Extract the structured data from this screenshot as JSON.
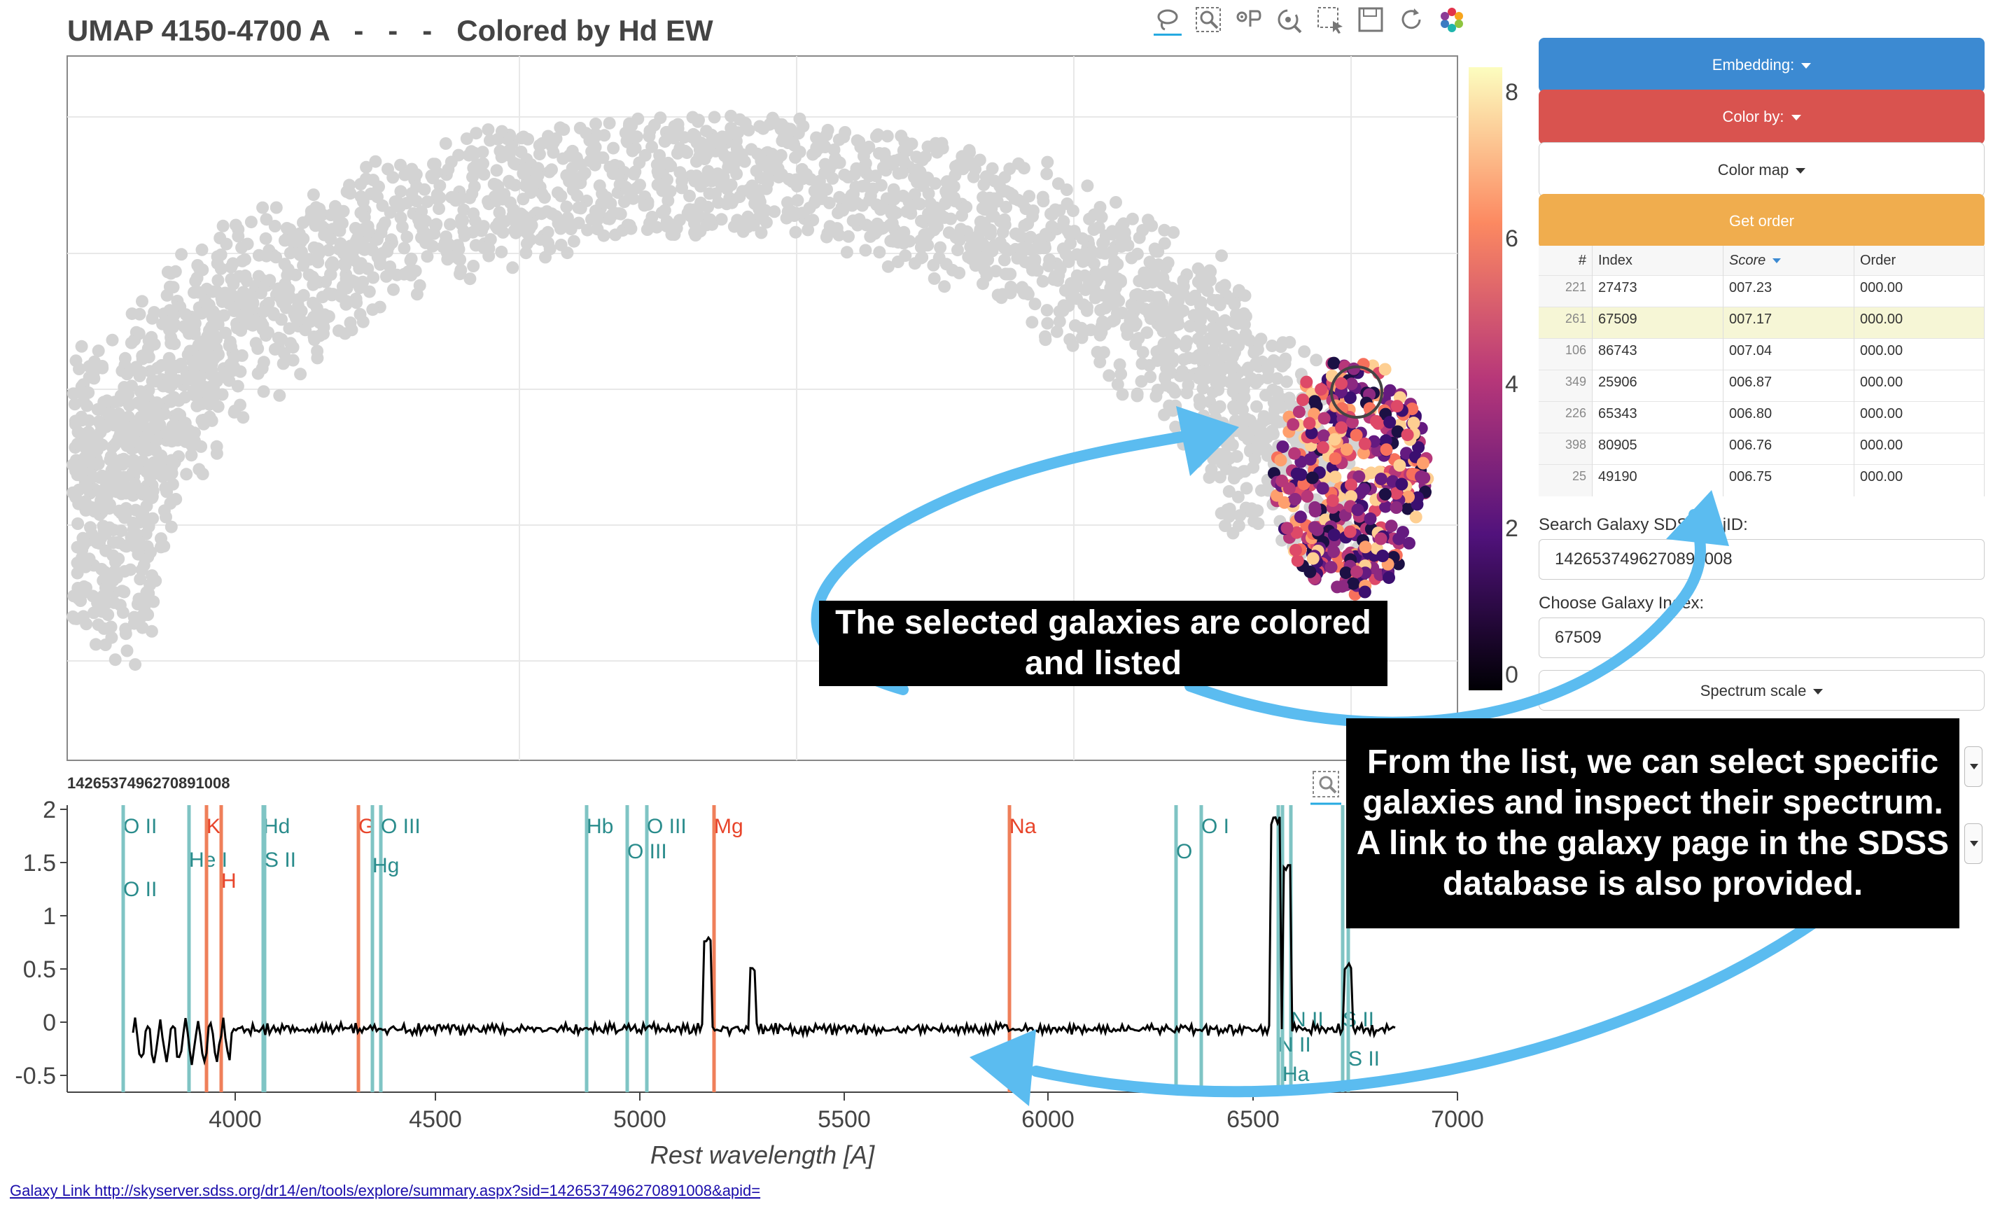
{
  "umap": {
    "title": "UMAP 4150-4700 A   -   -   -   Colored by Hd EW",
    "colorbar_ticks": [
      "8",
      "6",
      "4",
      "2",
      "0"
    ]
  },
  "toolbar": {
    "tools": [
      "lasso-select-icon",
      "box-zoom-icon",
      "pan-icon",
      "wheel-zoom-icon",
      "box-select-icon",
      "save-icon",
      "reset-icon",
      "bokeh-logo-icon"
    ]
  },
  "sidebar": {
    "embedding_label": "Embedding:",
    "colorby_label": "Color by:",
    "colormap_label": "Color map",
    "getorder_label": "Get order",
    "embedding_color": "#3c8ad2",
    "colorby_color": "#d9534f",
    "getorder_color": "#f0ad4e",
    "table": {
      "headers": [
        "#",
        "Index",
        "Score",
        "Order"
      ],
      "rows": [
        {
          "n": "221",
          "index": "27473",
          "score": "007.23",
          "order": "000.00"
        },
        {
          "n": "261",
          "index": "67509",
          "score": "007.17",
          "order": "000.00"
        },
        {
          "n": "106",
          "index": "86743",
          "score": "007.04",
          "order": "000.00"
        },
        {
          "n": "349",
          "index": "25906",
          "score": "006.87",
          "order": "000.00"
        },
        {
          "n": "226",
          "index": "65343",
          "score": "006.80",
          "order": "000.00"
        },
        {
          "n": "398",
          "index": "80905",
          "score": "006.76",
          "order": "000.00"
        },
        {
          "n": "25",
          "index": "49190",
          "score": "006.75",
          "order": "000.00"
        }
      ]
    },
    "search_label": "Search Galaxy SDSS objID:",
    "search_value": "1426537496270891008",
    "choose_label": "Choose Galaxy Index:",
    "choose_value": "67509",
    "spectrum_scale_label": "Spectrum scale"
  },
  "annotations": {
    "selected": "The selected galaxies are colored and listed",
    "list": "From the list, we can select specific galaxies and inspect their spectrum. A link to the galaxy page in the SDSS database is also provided.",
    "arrow_color": "#5bbcf0"
  },
  "spectrum": {
    "title": "1426537496270891008",
    "xlabel": "Rest wavelength [A]",
    "x_ticks": [
      "4000",
      "4500",
      "5000",
      "5500",
      "6000",
      "6500",
      "7000"
    ],
    "y_ticks": [
      "2",
      "1.5",
      "1",
      "0.5",
      "0",
      "-0.5"
    ],
    "lines": [
      {
        "label": "O II",
        "color": "teal"
      },
      {
        "label": "O II",
        "color": "teal"
      },
      {
        "label": "He I",
        "color": "teal"
      },
      {
        "label": "K",
        "color": "red"
      },
      {
        "label": "H",
        "color": "red"
      },
      {
        "label": "Hd",
        "color": "teal"
      },
      {
        "label": "S II",
        "color": "teal"
      },
      {
        "label": "G",
        "color": "red"
      },
      {
        "label": "O III",
        "color": "teal"
      },
      {
        "label": "Hg",
        "color": "teal"
      },
      {
        "label": "Hb",
        "color": "teal"
      },
      {
        "label": "O III",
        "color": "teal"
      },
      {
        "label": "O III",
        "color": "teal"
      },
      {
        "label": "Mg",
        "color": "red"
      },
      {
        "label": "Na",
        "color": "red"
      },
      {
        "label": "O I",
        "color": "teal"
      },
      {
        "label": "O I",
        "color": "teal"
      },
      {
        "label": "N II",
        "color": "teal"
      },
      {
        "label": "N II",
        "color": "teal"
      },
      {
        "label": "Ha",
        "color": "teal"
      },
      {
        "label": "S II",
        "color": "teal"
      },
      {
        "label": "S II",
        "color": "teal"
      }
    ]
  },
  "link": {
    "text": "Galaxy Link http://skyserver.sdss.org/dr14/en/tools/explore/summary.aspx?sid=1426537496270891008&apid="
  }
}
